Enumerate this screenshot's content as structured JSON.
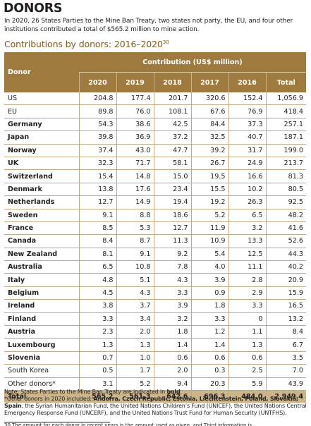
{
  "heading": "DONORS",
  "intro": "In 2020, 26 States Parties to the Mine Ban Treaty, two states not party, the EU, and four other institutions contributed a total of $565.2 million to mine action.",
  "table_title": "Contributions by donors: 2016–2020",
  "table_title_sup": "30",
  "table": {
    "col_donor": "Donor",
    "col_group": "Contribution (US$ million)",
    "years": [
      "2020",
      "2019",
      "2018",
      "2017",
      "2016"
    ],
    "col_total": "Total",
    "rows": [
      {
        "donor": "US",
        "bold": false,
        "v": [
          "204.8",
          "177.4",
          "201.7",
          "320.6",
          "152.4"
        ],
        "total": "1,056.9"
      },
      {
        "donor": "EU",
        "bold": false,
        "v": [
          "89.8",
          "76.0",
          "108.1",
          "67.6",
          "76.9"
        ],
        "total": "418.4"
      },
      {
        "donor": "Germany",
        "bold": true,
        "v": [
          "54.3",
          "38.6",
          "42.5",
          "84.4",
          "37.3"
        ],
        "total": "257.1"
      },
      {
        "donor": "Japan",
        "bold": true,
        "v": [
          "39.8",
          "36.9",
          "37.2",
          "32.5",
          "40.7"
        ],
        "total": "187.1"
      },
      {
        "donor": "Norway",
        "bold": true,
        "v": [
          "37.4",
          "43.0",
          "47.7",
          "39.2",
          "31.7"
        ],
        "total": "199.0"
      },
      {
        "donor": "UK",
        "bold": true,
        "v": [
          "32.3",
          "71.7",
          "58.1",
          "26.7",
          "24.9"
        ],
        "total": "213.7"
      },
      {
        "donor": "Switzerland",
        "bold": true,
        "v": [
          "15.4",
          "14.8",
          "15.0",
          "19.5",
          "16.6"
        ],
        "total": "81.3"
      },
      {
        "donor": "Denmark",
        "bold": true,
        "v": [
          "13.8",
          "17.6",
          "23.4",
          "15.5",
          "10.2"
        ],
        "total": "80.5"
      },
      {
        "donor": "Netherlands",
        "bold": true,
        "v": [
          "12.7",
          "14.9",
          "19.4",
          "19.2",
          "26.3"
        ],
        "total": "92.5"
      },
      {
        "donor": "Sweden",
        "bold": true,
        "v": [
          "9.1",
          "8.8",
          "18.6",
          "5.2",
          "6.5"
        ],
        "total": "48.2"
      },
      {
        "donor": "France",
        "bold": true,
        "v": [
          "8.5",
          "5.3",
          "12.7",
          "11.9",
          "3.2"
        ],
        "total": "41.6"
      },
      {
        "donor": "Canada",
        "bold": true,
        "v": [
          "8.4",
          "8.7",
          "11.3",
          "10.9",
          "13.3"
        ],
        "total": "52.6"
      },
      {
        "donor": "New Zealand",
        "bold": true,
        "v": [
          "8.1",
          "9.1",
          "9.2",
          "5.4",
          "12.5"
        ],
        "total": "44.3"
      },
      {
        "donor": "Australia",
        "bold": true,
        "v": [
          "6.5",
          "10.8",
          "7.8",
          "4.0",
          "11.1"
        ],
        "total": "40.2"
      },
      {
        "donor": "Italy",
        "bold": true,
        "v": [
          "4.8",
          "5.1",
          "4.3",
          "3.9",
          "2.8"
        ],
        "total": "20.9"
      },
      {
        "donor": "Belgium",
        "bold": true,
        "v": [
          "4.5",
          "4.3",
          "3.3",
          "0.9",
          "2.9"
        ],
        "total": "15.9"
      },
      {
        "donor": "Ireland",
        "bold": true,
        "v": [
          "3.8",
          "3.7",
          "3.9",
          "1.8",
          "3.3"
        ],
        "total": "16.5"
      },
      {
        "donor": "Finland",
        "bold": true,
        "v": [
          "3.3",
          "3.4",
          "3.2",
          "3.3",
          "0"
        ],
        "total": "13.2"
      },
      {
        "donor": "Austria",
        "bold": true,
        "v": [
          "2.3",
          "2.0",
          "1.8",
          "1.2",
          "1.1"
        ],
        "total": "8.4"
      },
      {
        "donor": "Luxembourg",
        "bold": true,
        "v": [
          "1.3",
          "1.3",
          "1.4",
          "1.4",
          "1.3"
        ],
        "total": "6.7"
      },
      {
        "donor": "Slovenia",
        "bold": true,
        "v": [
          "0.7",
          "1.0",
          "0.6",
          "0.6",
          "0.6"
        ],
        "total": "3.5"
      },
      {
        "donor": "South Korea",
        "bold": false,
        "v": [
          "0.5",
          "1.7",
          "2.0",
          "0.3",
          "2.5"
        ],
        "total": "7.0"
      },
      {
        "donor": "Other donors*",
        "bold": false,
        "v": [
          "3.1",
          "5.2",
          "9.4",
          "20.3",
          "5.9"
        ],
        "total": "43.9"
      }
    ],
    "total_row": {
      "label": "Total",
      "v": [
        "565.2",
        "561.3",
        "642.6",
        "696.3",
        "484.0"
      ],
      "total": "2,949.4"
    }
  },
  "notes": {
    "line1_prefix": "Note: States Parties to the Mine Ban Treaty are indicated in ",
    "line1_bold": "bold",
    "line1_suffix": ".",
    "line2_prefix": "*Other donors in 2020 included: ",
    "line2_bold": "Andorra, Czech Republic, Estonia, Liechtenstein, Poland, Slovakia, Spain",
    "line2_suffix": ", the Syrian Humanitarian Fund, the United Nations Children’s Fund (UNICEF), the United Nations Central Emergency Response Fund (UNCERF), and the United Nations Trust Fund for Human Security (UNTFHS)."
  },
  "footnote_fragment": "30   The amount for each donor in recent years is the amount used as given, and Third information is"
}
